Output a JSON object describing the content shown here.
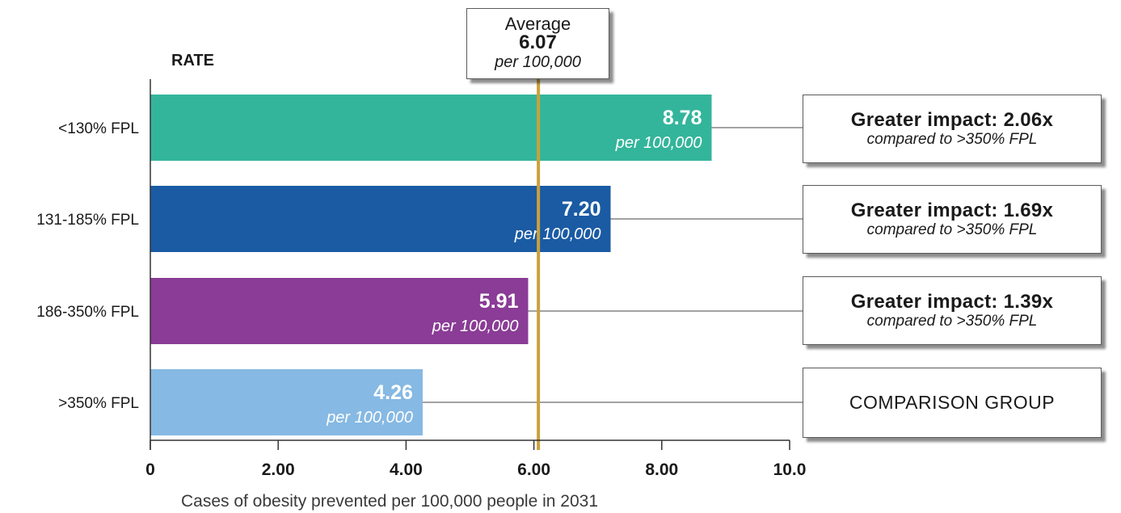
{
  "chart_data": {
    "type": "bar",
    "orientation": "horizontal",
    "ylabel": "RATE",
    "xlabel": "Cases of obesity prevented per 100,000 people in 2031",
    "categories": [
      "<130% FPL",
      "131-185% FPL",
      "186-350% FPL",
      ">350% FPL"
    ],
    "values": [
      8.78,
      7.2,
      5.91,
      4.26
    ],
    "value_labels": [
      "8.78",
      "7.20",
      "5.91",
      "4.26"
    ],
    "unit_label": "per 100,000",
    "bar_colors": [
      "#33b59b",
      "#1a5ba4",
      "#8a3c96",
      "#86b9e3"
    ],
    "xlim": [
      0,
      10
    ],
    "xticks": [
      0,
      2,
      4,
      6,
      8,
      10
    ],
    "xtick_labels": [
      "0",
      "2.00",
      "4.00",
      "6.00",
      "8.00",
      "10.0"
    ],
    "grid": false,
    "average": {
      "label": "Average",
      "value": 6.07,
      "value_label": "6.07",
      "unit": "per 100,000",
      "color": "#c9a13b"
    },
    "annotations": [
      {
        "title": "Greater impact: 2.06x",
        "subtitle": "compared to >350% FPL"
      },
      {
        "title": "Greater impact: 1.69x",
        "subtitle": "compared to >350% FPL"
      },
      {
        "title": "Greater impact: 1.39x",
        "subtitle": "compared to >350% FPL"
      },
      {
        "title": "COMPARISON GROUP",
        "subtitle": ""
      }
    ]
  }
}
